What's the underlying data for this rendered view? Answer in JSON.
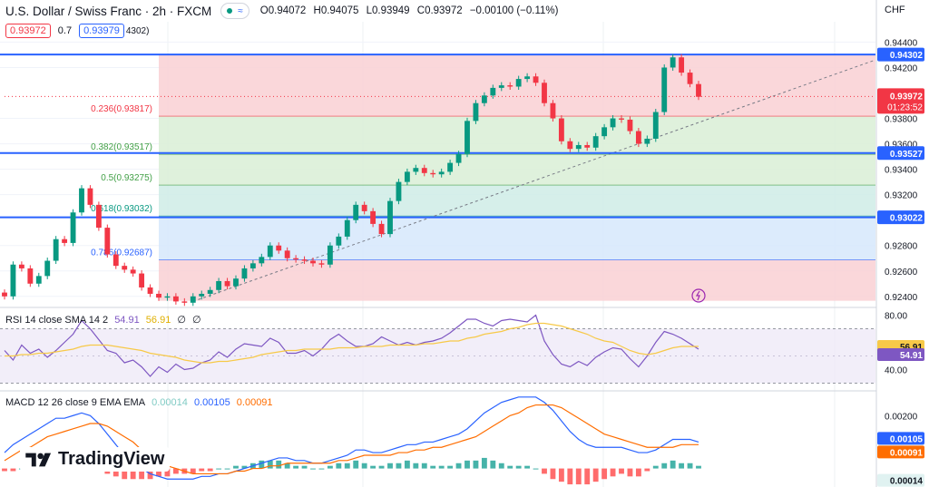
{
  "header": {
    "symbol_title": "U.S. Dollar / Swiss Franc · 2h · FXCM",
    "pill_glyph": "≈",
    "open": "O0.94072",
    "high": "H0.94075",
    "low": "L0.93949",
    "close": "C0.93972",
    "change": "−0.00100 (−0.11%)"
  },
  "trade": {
    "sell_price": "0.93972",
    "spread": "0.7",
    "buy_price": "0.93979",
    "clipped_label": "4302)"
  },
  "currency": "CHF",
  "brand": "TradingView",
  "chart_data": [
    {
      "type": "candlestick",
      "title": "U.S. Dollar / Swiss Franc · 2h · FXCM",
      "ylim": [
        0.9232,
        0.9456
      ],
      "y_ticks": [
        "0.94400",
        "0.94200",
        "0.93800",
        "0.93600",
        "0.93400",
        "0.93200",
        "0.92800",
        "0.92600",
        "0.92400"
      ],
      "up_color": "#089981",
      "down_color": "#f23645",
      "closes": [
        0.924,
        0.9265,
        0.9262,
        0.925,
        0.9256,
        0.9268,
        0.9285,
        0.9282,
        0.9306,
        0.9325,
        0.9312,
        0.9294,
        0.9273,
        0.9264,
        0.9261,
        0.9258,
        0.9247,
        0.9242,
        0.9239,
        0.924,
        0.9236,
        0.9235,
        0.924,
        0.9242,
        0.9245,
        0.9252,
        0.9248,
        0.9254,
        0.9262,
        0.9266,
        0.9271,
        0.928,
        0.9276,
        0.927,
        0.9269,
        0.9268,
        0.9266,
        0.9265,
        0.928,
        0.9287,
        0.93,
        0.9312,
        0.9307,
        0.9297,
        0.9289,
        0.9315,
        0.933,
        0.9338,
        0.9341,
        0.9337,
        0.9336,
        0.9338,
        0.9345,
        0.9352,
        0.9378,
        0.9392,
        0.9398,
        0.9404,
        0.9406,
        0.9405,
        0.9411,
        0.9413,
        0.9408,
        0.9392,
        0.938,
        0.9362,
        0.9356,
        0.9359,
        0.9357,
        0.9366,
        0.9373,
        0.938,
        0.9379,
        0.937,
        0.936,
        0.9364,
        0.9385,
        0.942,
        0.9428,
        0.9416,
        0.9407,
        0.9397
      ],
      "levels": [
        {
          "label": "0.94302",
          "value": 0.94302,
          "color": "#2962ff"
        },
        {
          "label": "0.93527",
          "value": 0.93527,
          "color": "#2962ff"
        },
        {
          "label": "0.93022",
          "value": 0.93022,
          "color": "#2962ff"
        }
      ],
      "last_price": {
        "label": "0.93972",
        "value": 0.93972,
        "countdown": "01:23:52",
        "color": "#f23645"
      },
      "fibonacci": [
        {
          "ratio": "0.236",
          "price": "0.93817",
          "label": "0.236(0.93817)",
          "value": 0.93817,
          "color": "#f23645"
        },
        {
          "ratio": "0.382",
          "price": "0.93517",
          "label": "0.382(0.93517)",
          "value": 0.93517,
          "color": "#43a047"
        },
        {
          "ratio": "0.5",
          "price": "0.93275",
          "label": "0.5(0.93275)",
          "value": 0.93275,
          "color": "#43a047"
        },
        {
          "ratio": "0.618",
          "price": "0.93032",
          "label": "0.618(0.93032)",
          "value": 0.93032,
          "color": "#089981"
        },
        {
          "ratio": "0.786",
          "price": "0.92687",
          "label": "0.786(0.92687)",
          "value": 0.92687,
          "color": "#2962ff"
        }
      ],
      "trendline": {
        "from": 0.9236,
        "to": 0.9426,
        "style": "dashed"
      }
    },
    {
      "type": "line",
      "title": "RSI 14 close SMA 14 2",
      "header_values": [
        "54.91",
        "56.91",
        "∅",
        "∅"
      ],
      "ylim": [
        25,
        85
      ],
      "y_ticks": [
        "80.00",
        "40.00"
      ],
      "bands": [
        70,
        30
      ],
      "series": [
        {
          "name": "RSI",
          "color": "#7e57c2",
          "label": "54.91",
          "values": [
            54,
            47,
            58,
            52,
            55,
            49,
            54,
            60,
            66,
            76,
            70,
            62,
            54,
            52,
            45,
            47,
            42,
            35,
            42,
            38,
            44,
            40,
            41,
            45,
            47,
            53,
            49,
            55,
            59,
            58,
            57,
            63,
            60,
            52,
            52,
            54,
            50,
            55,
            62,
            66,
            61,
            57,
            57,
            59,
            64,
            61,
            58,
            60,
            58,
            60,
            61,
            63,
            67,
            72,
            77,
            77,
            74,
            72,
            76,
            77,
            76,
            75,
            80,
            61,
            51,
            44,
            42,
            46,
            43,
            49,
            53,
            56,
            55,
            48,
            42,
            50,
            60,
            68,
            66,
            63,
            59,
            55
          ]
        },
        {
          "name": "SMA",
          "color": "#f7c948",
          "label": "56.91",
          "values": [
            50,
            50,
            51,
            51,
            52,
            52,
            53,
            54,
            55,
            57,
            58,
            58,
            58,
            57,
            56,
            55,
            54,
            52,
            51,
            50,
            49,
            47,
            46,
            45,
            45,
            46,
            46,
            47,
            48,
            49,
            51,
            52,
            53,
            54,
            54,
            55,
            55,
            55,
            55,
            56,
            56,
            56,
            57,
            57,
            57,
            58,
            58,
            58,
            58,
            59,
            59,
            60,
            61,
            61,
            63,
            64,
            66,
            67,
            68,
            70,
            71,
            73,
            74,
            74,
            73,
            72,
            70,
            68,
            66,
            63,
            61,
            60,
            57,
            54,
            52,
            51,
            52,
            54,
            56,
            57,
            57,
            57
          ]
        }
      ]
    },
    {
      "type": "line",
      "title": "MACD 12 26 close 9 EMA EMA",
      "header_values": [
        "0.00014",
        "0.00105",
        "0.00091"
      ],
      "ylim": [
        -0.0007,
        0.0029
      ],
      "y_ticks": [
        "0.00200"
      ],
      "series": [
        {
          "name": "Histogram",
          "color": "#26a69a",
          "label": "0.00014",
          "values": [
            -0.0001,
            -0.0001,
            0.0,
            0.0001,
            0.0002,
            0.0002,
            0.0001,
            0.0,
            0.0001,
            0.0002,
            0.0001,
            -0.0001,
            -0.0002,
            -0.0003,
            -0.0004,
            -0.0004,
            -0.0004,
            -0.0004,
            -0.0003,
            -0.0003,
            -0.0002,
            -0.0002,
            -0.0002,
            -0.0001,
            -0.0001,
            0.0,
            0.0,
            0.0001,
            0.0001,
            0.0002,
            0.0003,
            0.0003,
            0.0003,
            0.0002,
            0.0001,
            0.0001,
            0.0,
            0.0,
            0.0001,
            0.0002,
            0.0002,
            0.0003,
            0.0002,
            0.0001,
            0.0001,
            0.0002,
            0.0002,
            0.0003,
            0.0002,
            0.0002,
            0.0001,
            0.0001,
            0.0001,
            0.0002,
            0.0003,
            0.0003,
            0.0004,
            0.0003,
            0.0002,
            0.0001,
            0.0001,
            0.0001,
            0.0,
            -0.0002,
            -0.0004,
            -0.0005,
            -0.0006,
            -0.0006,
            -0.0006,
            -0.0005,
            -0.0004,
            -0.0003,
            -0.0002,
            -0.0003,
            -0.0003,
            -0.0001,
            0.0001,
            0.0002,
            0.0003,
            0.0002,
            0.0002,
            0.0001
          ]
        },
        {
          "name": "MACD",
          "color": "#2962ff",
          "label": "0.00105",
          "values": [
            0.0006,
            0.0009,
            0.0011,
            0.0013,
            0.0015,
            0.0017,
            0.0019,
            0.0019,
            0.002,
            0.0021,
            0.002,
            0.0017,
            0.0013,
            0.0009,
            0.0005,
            0.0002,
            0.0,
            -0.0002,
            -0.0003,
            -0.0004,
            -0.0004,
            -0.0004,
            -0.0004,
            -0.0003,
            -0.0003,
            -0.0002,
            -0.0002,
            -0.0001,
            0.0,
            0.0001,
            0.0002,
            0.0003,
            0.0004,
            0.0004,
            0.0003,
            0.0003,
            0.0002,
            0.0002,
            0.0003,
            0.0004,
            0.0005,
            0.0007,
            0.0007,
            0.0006,
            0.0006,
            0.0007,
            0.0008,
            0.0009,
            0.0009,
            0.001,
            0.001,
            0.0011,
            0.0012,
            0.0013,
            0.0015,
            0.0018,
            0.0021,
            0.0023,
            0.0025,
            0.0026,
            0.0027,
            0.0027,
            0.0027,
            0.0025,
            0.0022,
            0.0018,
            0.0014,
            0.0011,
            0.0009,
            0.0008,
            0.0008,
            0.0008,
            0.0008,
            0.0007,
            0.0006,
            0.0006,
            0.0007,
            0.0009,
            0.0011,
            0.0011,
            0.0011,
            0.001
          ]
        },
        {
          "name": "Signal",
          "color": "#ff6d00",
          "label": "0.00091",
          "values": [
            0.0003,
            0.0005,
            0.0007,
            0.0008,
            0.001,
            0.0012,
            0.0013,
            0.0014,
            0.0015,
            0.0016,
            0.0017,
            0.0017,
            0.0016,
            0.0014,
            0.0012,
            0.001,
            0.0007,
            0.0005,
            0.0003,
            0.0001,
            0.0,
            -0.0001,
            -0.0002,
            -0.0002,
            -0.0002,
            -0.0002,
            -0.0002,
            -0.0001,
            -0.0001,
            0.0,
            0.0,
            0.0001,
            0.0001,
            0.0002,
            0.0002,
            0.0002,
            0.0002,
            0.0002,
            0.0002,
            0.0003,
            0.0003,
            0.0004,
            0.0005,
            0.0005,
            0.0005,
            0.0005,
            0.0006,
            0.0006,
            0.0007,
            0.0007,
            0.0008,
            0.0008,
            0.0009,
            0.001,
            0.0011,
            0.0012,
            0.0014,
            0.0016,
            0.0018,
            0.002,
            0.0021,
            0.0023,
            0.0024,
            0.0024,
            0.0024,
            0.0023,
            0.0021,
            0.0019,
            0.0017,
            0.0015,
            0.0013,
            0.0012,
            0.0011,
            0.001,
            0.0009,
            0.0008,
            0.0008,
            0.0008,
            0.0008,
            0.0009,
            0.0009,
            0.0009
          ]
        }
      ]
    }
  ]
}
